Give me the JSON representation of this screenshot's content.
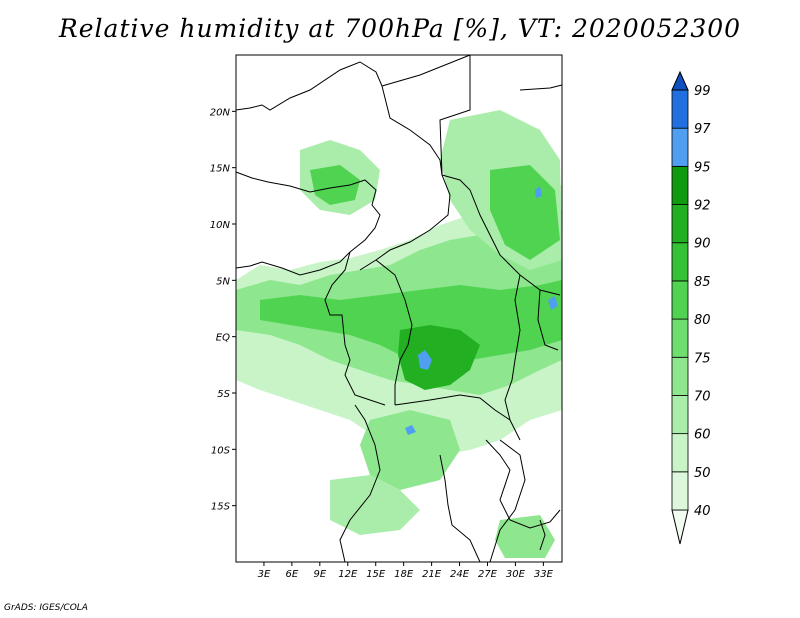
{
  "title": "Relative humidity at 700hPa [%], VT: 2020052300",
  "credit": "GrADS: IGES/COLA",
  "map": {
    "lon_range": [
      0,
      35
    ],
    "lat_range": [
      -20,
      25
    ],
    "lon_ticks": [
      "3E",
      "6E",
      "9E",
      "12E",
      "15E",
      "18E",
      "21E",
      "24E",
      "27E",
      "30E",
      "33E"
    ],
    "lat_ticks": [
      "20N",
      "15N",
      "10N",
      "5N",
      "EQ",
      "5S",
      "10S",
      "15S"
    ]
  },
  "colorbar": {
    "levels": [
      "40",
      "50",
      "60",
      "70",
      "75",
      "80",
      "85",
      "90",
      "92",
      "95",
      "97",
      "99"
    ],
    "colors": [
      "#f0fcf0",
      "#dcf7dc",
      "#c8f4c8",
      "#aaedaa",
      "#8ee68e",
      "#6edf6e",
      "#50d350",
      "#36c236",
      "#22b022",
      "#0f9a0f",
      "#4f9ef0",
      "#2070e0",
      "#1050c0"
    ]
  }
}
